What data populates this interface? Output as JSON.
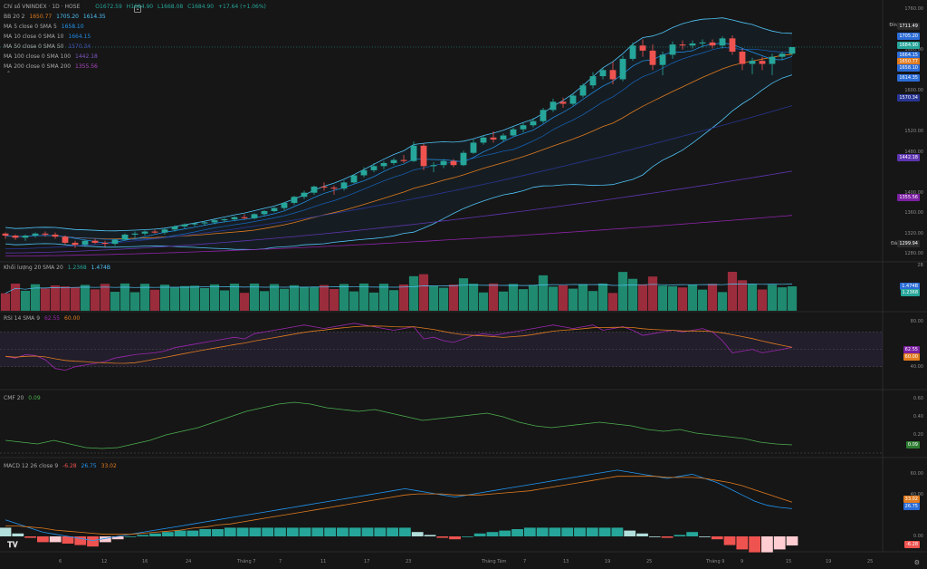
{
  "main_legend": {
    "title": "Chỉ số VNINDEX · 1D · HOSE",
    "ohlc": {
      "o": "O1672.59",
      "h": "H1684.90",
      "l": "L1668.08",
      "c": "C1684.90",
      "chg": "+17.64 (+1.06%)"
    },
    "bb": {
      "label": "BB 20 2",
      "v1": "1650.77",
      "v2": "1705.20",
      "v3": "1614.35"
    },
    "ma5": {
      "label": "MA 5 close 0 SMA 5",
      "v": "1658.10"
    },
    "ma10": {
      "label": "MA 10 close 0 SMA 10",
      "v": "1664.15"
    },
    "ma50": {
      "label": "MA 50 close 0 SMA 50",
      "v": "1570.34"
    },
    "ma100": {
      "label": "MA 100 close 0 SMA 100",
      "v": "1442.18"
    },
    "ma200": {
      "label": "MA 200 close 0 SMA 200",
      "v": "1355.56"
    }
  },
  "vol_legend": {
    "label": "Khối lượng 20 SMA 20",
    "v1": "1.2368",
    "v2": "1.474B"
  },
  "rsi_legend": {
    "label": "RSI 14 SMA 9",
    "v1": "62.55",
    "v2": "60.00"
  },
  "cmf_legend": {
    "label": "CMF 20",
    "v": "0.09"
  },
  "macd_legend": {
    "label": "MACD 12 26 close 9",
    "v1": "-6.28",
    "v2": "26.75",
    "v3": "33.02"
  },
  "price_axis": {
    "ticks": [
      "1760.00",
      "1680.00",
      "1600.00",
      "1520.00",
      "1480.00",
      "1400.00",
      "1360.00",
      "1320.00",
      "1280.00"
    ],
    "dinh_label": "Đỉnh",
    "dinh": "1711.49",
    "day_label": "Đáy",
    "day": "1299.94",
    "tags": [
      {
        "v": "1705.20",
        "c": "#2b6cd6"
      },
      {
        "v": "1684.90",
        "c": "#26a69a"
      },
      {
        "v": "1664.15",
        "c": "#2b6cd6"
      },
      {
        "v": "1650.77",
        "c": "#e07b1f"
      },
      {
        "v": "1658.10",
        "c": "#2b6cd6"
      },
      {
        "v": "1614.35",
        "c": "#2b6cd6"
      },
      {
        "v": "1570.34",
        "c": "#283593"
      },
      {
        "v": "1442.18",
        "c": "#5e35b1"
      },
      {
        "v": "1355.56",
        "c": "#7b1fa2"
      }
    ]
  },
  "vol_axis": {
    "ticks": [
      "2B"
    ],
    "tag1": "1.474B",
    "tag2": "1.2368"
  },
  "rsi_axis": {
    "ticks": [
      "80.00",
      "40.00"
    ],
    "tag1": "62.55",
    "tag2": "60.00"
  },
  "cmf_axis": {
    "ticks": [
      "0.60",
      "0.40",
      "0.20"
    ],
    "tag": "0.09"
  },
  "macd_axis": {
    "ticks": [
      "60.00",
      "40.00",
      "0.00"
    ],
    "tag1": "33.02",
    "tag2": "26.75",
    "tag3": "-6.28"
  },
  "x_ticks": [
    "6",
    "12",
    "16",
    "24",
    "Tháng 7",
    "7",
    "11",
    "17",
    "23",
    "Tháng Tám",
    "7",
    "13",
    "19",
    "25",
    "Tháng 9",
    "9",
    "15",
    "19",
    "25"
  ],
  "colors": {
    "up": "#26a69a",
    "down": "#ef5350",
    "bb": "#4fc3f7",
    "ma5": "#2196f3",
    "ma10": "#1565c0",
    "ma50": "#283593",
    "ma100": "#5e35b1",
    "ma200": "#8e24aa",
    "orange": "#e07b1f",
    "cmf": "#4caf50",
    "rsi": "#9c27b0"
  },
  "chart_data": {
    "type": "candlestick",
    "title": "Chỉ số VNINDEX · 1D · HOSE",
    "ylim": [
      1270,
      1770
    ],
    "candles": [
      [
        1320,
        1322,
        1310,
        1316
      ],
      [
        1316,
        1318,
        1308,
        1312
      ],
      [
        1312,
        1318,
        1306,
        1316
      ],
      [
        1316,
        1322,
        1312,
        1320
      ],
      [
        1320,
        1324,
        1314,
        1318
      ],
      [
        1318,
        1322,
        1310,
        1314
      ],
      [
        1314,
        1316,
        1298,
        1302
      ],
      [
        1302,
        1306,
        1292,
        1298
      ],
      [
        1298,
        1308,
        1294,
        1306
      ],
      [
        1306,
        1310,
        1300,
        1302
      ],
      [
        1302,
        1306,
        1294,
        1300
      ],
      [
        1300,
        1310,
        1296,
        1308
      ],
      [
        1308,
        1320,
        1306,
        1318
      ],
      [
        1318,
        1324,
        1312,
        1320
      ],
      [
        1320,
        1326,
        1316,
        1324
      ],
      [
        1324,
        1328,
        1320,
        1322
      ],
      [
        1322,
        1330,
        1318,
        1328
      ],
      [
        1328,
        1336,
        1324,
        1334
      ],
      [
        1334,
        1340,
        1330,
        1338
      ],
      [
        1338,
        1342,
        1334,
        1340
      ],
      [
        1340,
        1344,
        1336,
        1342
      ],
      [
        1342,
        1348,
        1338,
        1346
      ],
      [
        1346,
        1350,
        1342,
        1348
      ],
      [
        1348,
        1354,
        1346,
        1352
      ],
      [
        1352,
        1358,
        1348,
        1350
      ],
      [
        1350,
        1360,
        1348,
        1358
      ],
      [
        1358,
        1366,
        1354,
        1364
      ],
      [
        1364,
        1372,
        1362,
        1370
      ],
      [
        1370,
        1382,
        1366,
        1380
      ],
      [
        1380,
        1394,
        1376,
        1392
      ],
      [
        1392,
        1404,
        1388,
        1400
      ],
      [
        1400,
        1414,
        1396,
        1412
      ],
      [
        1412,
        1420,
        1404,
        1410
      ],
      [
        1410,
        1414,
        1396,
        1408
      ],
      [
        1408,
        1424,
        1404,
        1420
      ],
      [
        1420,
        1436,
        1418,
        1434
      ],
      [
        1434,
        1450,
        1430,
        1444
      ],
      [
        1444,
        1458,
        1440,
        1452
      ],
      [
        1452,
        1462,
        1446,
        1458
      ],
      [
        1458,
        1468,
        1454,
        1464
      ],
      [
        1464,
        1474,
        1458,
        1462
      ],
      [
        1462,
        1500,
        1460,
        1492
      ],
      [
        1492,
        1496,
        1444,
        1452
      ],
      [
        1452,
        1460,
        1440,
        1454
      ],
      [
        1454,
        1466,
        1448,
        1462
      ],
      [
        1462,
        1466,
        1450,
        1454
      ],
      [
        1454,
        1482,
        1452,
        1478
      ],
      [
        1478,
        1504,
        1476,
        1498
      ],
      [
        1498,
        1512,
        1494,
        1508
      ],
      [
        1508,
        1520,
        1498,
        1504
      ],
      [
        1504,
        1516,
        1500,
        1512
      ],
      [
        1512,
        1528,
        1510,
        1524
      ],
      [
        1524,
        1538,
        1518,
        1532
      ],
      [
        1532,
        1546,
        1528,
        1540
      ],
      [
        1540,
        1566,
        1536,
        1562
      ],
      [
        1562,
        1584,
        1558,
        1578
      ],
      [
        1578,
        1586,
        1566,
        1574
      ],
      [
        1574,
        1594,
        1570,
        1590
      ],
      [
        1590,
        1614,
        1586,
        1610
      ],
      [
        1610,
        1636,
        1604,
        1628
      ],
      [
        1628,
        1644,
        1622,
        1640
      ],
      [
        1640,
        1656,
        1612,
        1622
      ],
      [
        1622,
        1668,
        1618,
        1662
      ],
      [
        1662,
        1694,
        1658,
        1688
      ],
      [
        1688,
        1700,
        1666,
        1678
      ],
      [
        1678,
        1690,
        1640,
        1650
      ],
      [
        1650,
        1676,
        1630,
        1670
      ],
      [
        1670,
        1696,
        1662,
        1690
      ],
      [
        1690,
        1698,
        1680,
        1688
      ],
      [
        1688,
        1698,
        1682,
        1692
      ],
      [
        1692,
        1700,
        1684,
        1694
      ],
      [
        1694,
        1700,
        1682,
        1688
      ],
      [
        1688,
        1706,
        1682,
        1702
      ],
      [
        1702,
        1708,
        1670,
        1676
      ],
      [
        1676,
        1682,
        1640,
        1652
      ],
      [
        1652,
        1664,
        1632,
        1658
      ],
      [
        1658,
        1666,
        1640,
        1652
      ],
      [
        1652,
        1672,
        1630,
        1666
      ],
      [
        1666,
        1676,
        1660,
        1672
      ],
      [
        1672,
        1685,
        1668,
        1685
      ]
    ],
    "volume_axis_max": 2.0,
    "rsi": [
      52,
      50,
      54,
      53,
      48,
      38,
      36,
      40,
      42,
      44,
      46,
      50,
      52,
      54,
      55,
      56,
      58,
      62,
      64,
      66,
      68,
      70,
      72,
      74,
      72,
      78,
      80,
      82,
      84,
      86,
      88,
      86,
      84,
      86,
      88,
      90,
      88,
      86,
      84,
      82,
      84,
      86,
      72,
      74,
      70,
      68,
      72,
      76,
      78,
      76,
      78,
      80,
      82,
      84,
      86,
      88,
      86,
      84,
      86,
      88,
      82,
      84,
      86,
      82,
      76,
      78,
      80,
      82,
      80,
      82,
      84,
      80,
      70,
      56,
      58,
      60,
      56,
      58,
      60,
      62.55
    ],
    "cmf": [
      0.14,
      0.12,
      0.1,
      0.14,
      0.1,
      0.06,
      0.05,
      0.06,
      0.1,
      0.14,
      0.2,
      0.24,
      0.28,
      0.34,
      0.4,
      0.46,
      0.5,
      0.54,
      0.56,
      0.54,
      0.5,
      0.48,
      0.46,
      0.48,
      0.44,
      0.4,
      0.36,
      0.38,
      0.4,
      0.42,
      0.44,
      0.4,
      0.34,
      0.3,
      0.28,
      0.3,
      0.32,
      0.34,
      0.32,
      0.3,
      0.26,
      0.24,
      0.26,
      0.22,
      0.2,
      0.18,
      0.16,
      0.12,
      0.1,
      0.09
    ],
    "macd_line": [
      16,
      12,
      8,
      4,
      2,
      0,
      -2,
      -4,
      -2,
      0,
      2,
      4,
      6,
      8,
      10,
      12,
      14,
      16,
      18,
      20,
      22,
      24,
      26,
      28,
      30,
      32,
      34,
      36,
      38,
      40,
      42,
      44,
      46,
      44,
      42,
      40,
      38,
      40,
      42,
      44,
      46,
      48,
      50,
      52,
      54,
      56,
      58,
      60,
      62,
      64,
      62,
      60,
      58,
      56,
      58,
      60,
      56,
      52,
      46,
      40,
      34,
      30,
      28,
      26.75
    ],
    "macd_signal": [
      10,
      10,
      9,
      8,
      6,
      5,
      4,
      3,
      2,
      2,
      2,
      3,
      4,
      5,
      6,
      8,
      9,
      11,
      12,
      14,
      16,
      18,
      20,
      22,
      24,
      26,
      28,
      30,
      32,
      34,
      36,
      38,
      40,
      41,
      41,
      41,
      40,
      40,
      40,
      41,
      42,
      43,
      44,
      46,
      48,
      50,
      52,
      54,
      56,
      58,
      58,
      58,
      58,
      57,
      57,
      57,
      56,
      54,
      52,
      49,
      45,
      41,
      37,
      33.02
    ]
  }
}
